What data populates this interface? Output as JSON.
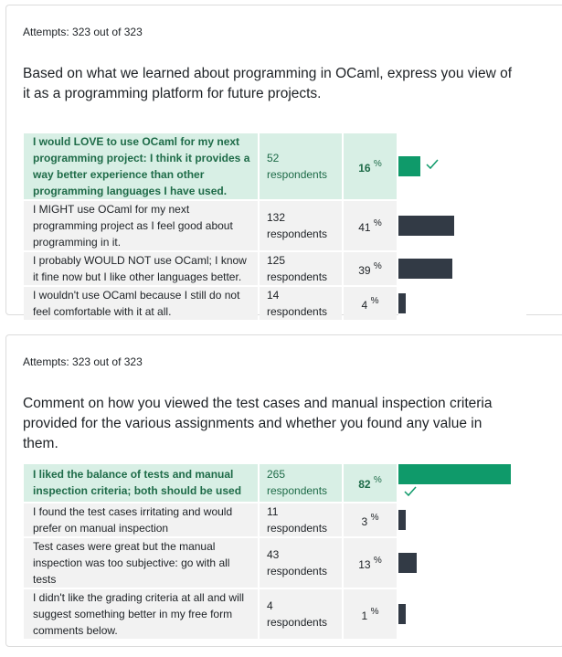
{
  "q1": {
    "attempts": "Attempts: 323 out of 323",
    "question": "Based on what we learned about programming in OCaml, express you view of it as a programming platform for future projects.",
    "answers": [
      {
        "text": "I would LOVE to use OCaml for my next programming project: I think it provides a way better experience than other programming languages I have used.",
        "respondents": "52 respondents",
        "percent": "16",
        "correct": true,
        "bar_fraction": 0.16
      },
      {
        "text": "I MIGHT use OCaml for my next programming project as I feel good about programming in it.",
        "respondents": "132 respondents",
        "percent": "41",
        "correct": false,
        "bar_fraction": 0.41
      },
      {
        "text": "I probably WOULD NOT use OCaml; I know it fine now but I like other languages better.",
        "respondents": "125 respondents",
        "percent": "39",
        "correct": false,
        "bar_fraction": 0.39
      },
      {
        "text": "I wouldn't use OCaml because I still do not feel comfortable with it at all.",
        "respondents": "14 respondents",
        "percent": "4",
        "correct": false,
        "bar_fraction": 0.04
      }
    ]
  },
  "q2": {
    "attempts": "Attempts: 323 out of 323",
    "question": "Comment on how you viewed the test cases and manual inspection criteria provided for the various assignments and whether you found any value in them.",
    "answers": [
      {
        "text": "I liked the balance of tests and manual inspection criteria; both should be used",
        "respondents": "265 respondents",
        "percent": "82",
        "correct": true,
        "bar_fraction": 0.82
      },
      {
        "text": "I found the test cases irritating and would prefer on manual inspection",
        "respondents": "11 respondents",
        "percent": "3",
        "correct": false,
        "bar_fraction": 0.03
      },
      {
        "text": "Test cases were great but the manual inspection was too subjective: go with all tests",
        "respondents": "43 respondents",
        "percent": "13",
        "correct": false,
        "bar_fraction": 0.13
      },
      {
        "text": "I didn't like the grading criteria at all and will suggest something better in my free form comments below.",
        "respondents": "4 respondents",
        "percent": "1",
        "correct": false,
        "bar_fraction": 0.01
      }
    ]
  },
  "percent_sign": "%",
  "check_icon": "check-icon",
  "colors": {
    "correct_bar": "#0f9a6a",
    "bar": "#323a45",
    "correct_bg": "#d8efe5",
    "row_bg": "#f2f2f2"
  }
}
